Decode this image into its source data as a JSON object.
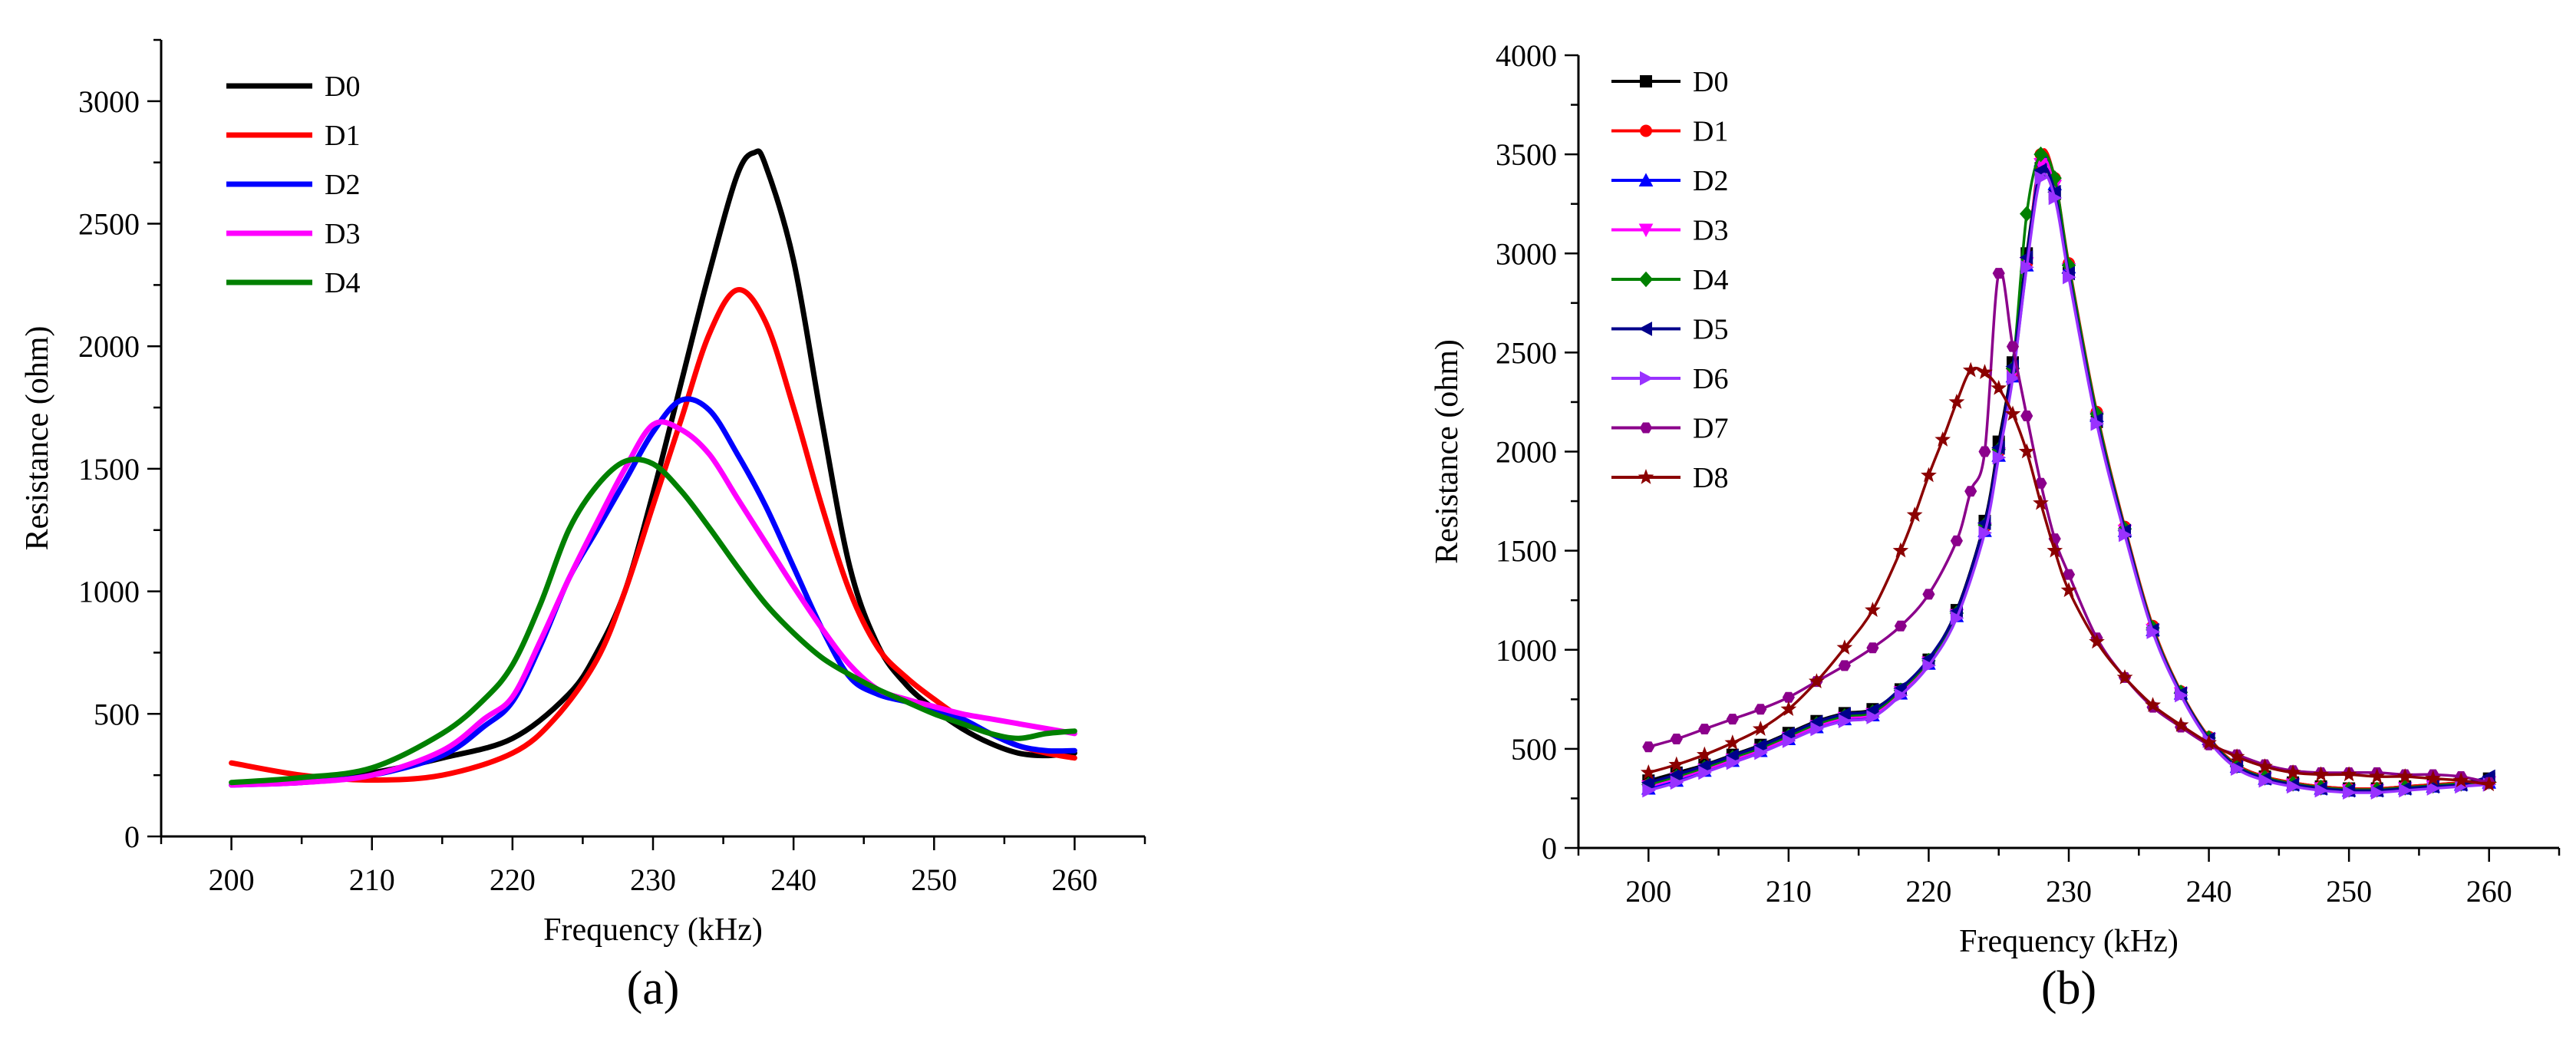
{
  "chart_data": [
    {
      "type": "line",
      "panel_label": "(a)",
      "xlabel": "Frequency (kHz)",
      "ylabel": "Resistance (ohm)",
      "xlim": [
        195,
        265
      ],
      "ylim": [
        0,
        3250
      ],
      "xticks": [
        200,
        210,
        220,
        230,
        240,
        250,
        260
      ],
      "yticks": [
        0,
        500,
        1000,
        1500,
        2000,
        2500,
        3000
      ],
      "markers": false,
      "grid": false,
      "legend": "top-left",
      "series": [
        {
          "name": "D0",
          "color": "#000000",
          "x": [
            200,
            205,
            210,
            215,
            220,
            224,
            226,
            228,
            230,
            232,
            234,
            236,
            237.2,
            238,
            240,
            242,
            244,
            246,
            248,
            250,
            252,
            254,
            256,
            258,
            260
          ],
          "y": [
            210,
            230,
            260,
            320,
            400,
            580,
            750,
            1000,
            1400,
            1850,
            2300,
            2700,
            2790,
            2740,
            2350,
            1700,
            1100,
            780,
            620,
            520,
            440,
            380,
            340,
            330,
            340
          ]
        },
        {
          "name": "D1",
          "color": "#ff0000",
          "x": [
            200,
            205,
            210,
            215,
            220,
            223,
            226,
            228,
            230,
            232,
            234,
            236,
            238,
            240,
            242,
            244,
            246,
            248,
            250,
            252,
            254,
            256,
            258,
            260
          ],
          "y": [
            300,
            250,
            230,
            250,
            340,
            480,
            720,
            1000,
            1350,
            1700,
            2050,
            2230,
            2100,
            1750,
            1350,
            1000,
            770,
            650,
            560,
            480,
            420,
            370,
            340,
            320
          ]
        },
        {
          "name": "D2",
          "color": "#0000ff",
          "x": [
            200,
            205,
            210,
            215,
            218,
            220,
            222,
            224,
            226,
            228,
            230,
            232,
            234,
            236,
            238,
            240,
            242,
            244,
            246,
            248,
            250,
            252,
            254,
            256,
            258,
            260
          ],
          "y": [
            210,
            220,
            250,
            330,
            450,
            550,
            780,
            1050,
            1250,
            1450,
            1650,
            1780,
            1740,
            1560,
            1350,
            1100,
            850,
            650,
            580,
            550,
            520,
            480,
            420,
            370,
            350,
            350
          ]
        },
        {
          "name": "D3",
          "color": "#ff00ff",
          "x": [
            200,
            205,
            210,
            215,
            218,
            220,
            222,
            224,
            226,
            228,
            230,
            232,
            234,
            236,
            238,
            240,
            242,
            244,
            246,
            248,
            250,
            252,
            254,
            256,
            258,
            260
          ],
          "y": [
            210,
            220,
            250,
            350,
            480,
            570,
            800,
            1050,
            1280,
            1500,
            1680,
            1660,
            1560,
            1380,
            1200,
            1020,
            850,
            700,
            600,
            560,
            530,
            500,
            480,
            460,
            440,
            420
          ]
        },
        {
          "name": "D4",
          "color": "#008000",
          "x": [
            200,
            205,
            210,
            215,
            218,
            220,
            222,
            224,
            226,
            228,
            230,
            232,
            234,
            236,
            238,
            240,
            242,
            244,
            246,
            248,
            250,
            252,
            254,
            256,
            258,
            260
          ],
          "y": [
            220,
            240,
            280,
            420,
            560,
            700,
            950,
            1250,
            1430,
            1530,
            1520,
            1410,
            1260,
            1100,
            950,
            830,
            730,
            660,
            600,
            550,
            500,
            460,
            420,
            400,
            420,
            430
          ]
        }
      ]
    },
    {
      "type": "line",
      "panel_label": "(b)",
      "xlabel": "Frequency (kHz)",
      "ylabel": "Resistance (ohm)",
      "xlim": [
        195,
        265
      ],
      "ylim": [
        0,
        4000
      ],
      "xticks": [
        200,
        210,
        220,
        230,
        240,
        250,
        260
      ],
      "yticks": [
        0,
        500,
        1000,
        1500,
        2000,
        2500,
        3000,
        3500,
        4000
      ],
      "markers": true,
      "grid": false,
      "legend": "top-left",
      "series": [
        {
          "name": "D0",
          "color": "#000000",
          "marker": "square",
          "x": [
            200,
            202,
            204,
            206,
            208,
            210,
            212,
            214,
            216,
            218,
            220,
            222,
            224,
            225,
            226,
            227,
            228,
            229,
            230,
            232,
            234,
            236,
            238,
            240,
            242,
            244,
            246,
            248,
            250,
            252,
            254,
            256,
            258,
            260
          ],
          "y": [
            340,
            380,
            420,
            470,
            520,
            580,
            640,
            680,
            700,
            800,
            950,
            1200,
            1650,
            2050,
            2450,
            3000,
            3430,
            3300,
            2900,
            2150,
            1600,
            1100,
            780,
            550,
            420,
            360,
            330,
            310,
            300,
            300,
            310,
            320,
            330,
            350
          ]
        },
        {
          "name": "D1",
          "color": "#ff0000",
          "marker": "circle",
          "x": [
            200,
            202,
            204,
            206,
            208,
            210,
            212,
            214,
            216,
            218,
            220,
            222,
            224,
            225,
            226,
            227,
            228,
            229,
            230,
            232,
            234,
            236,
            238,
            240,
            242,
            244,
            246,
            248,
            250,
            252,
            254,
            256,
            258,
            260
          ],
          "y": [
            320,
            360,
            400,
            450,
            500,
            560,
            620,
            660,
            680,
            790,
            940,
            1180,
            1620,
            2000,
            2400,
            2950,
            3500,
            3380,
            2950,
            2200,
            1620,
            1120,
            790,
            560,
            420,
            360,
            330,
            310,
            300,
            300,
            310,
            320,
            330,
            340
          ]
        },
        {
          "name": "D2",
          "color": "#0000ff",
          "marker": "triangle-up",
          "x": [
            200,
            202,
            204,
            206,
            208,
            210,
            212,
            214,
            216,
            218,
            220,
            222,
            224,
            225,
            226,
            227,
            228,
            229,
            230,
            232,
            234,
            236,
            238,
            240,
            242,
            244,
            246,
            248,
            250,
            252,
            254,
            256,
            258,
            260
          ],
          "y": [
            300,
            340,
            390,
            440,
            490,
            550,
            610,
            650,
            670,
            780,
            930,
            1170,
            1600,
            1980,
            2380,
            2940,
            3470,
            3350,
            2930,
            2180,
            1600,
            1100,
            780,
            550,
            410,
            350,
            320,
            300,
            290,
            290,
            300,
            310,
            320,
            330
          ]
        },
        {
          "name": "D3",
          "color": "#ff00ff",
          "marker": "triangle-down",
          "x": [
            200,
            202,
            204,
            206,
            208,
            210,
            212,
            214,
            216,
            218,
            220,
            222,
            224,
            225,
            226,
            227,
            228,
            229,
            230,
            232,
            234,
            236,
            238,
            240,
            242,
            244,
            246,
            248,
            250,
            252,
            254,
            256,
            258,
            260
          ],
          "y": [
            310,
            350,
            395,
            445,
            495,
            555,
            615,
            655,
            675,
            785,
            935,
            1175,
            1610,
            1990,
            2390,
            2950,
            3450,
            3340,
            2920,
            2170,
            1600,
            1100,
            780,
            550,
            410,
            350,
            320,
            300,
            290,
            290,
            300,
            310,
            320,
            330
          ]
        },
        {
          "name": "D4",
          "color": "#008000",
          "marker": "diamond",
          "x": [
            200,
            202,
            204,
            206,
            208,
            210,
            212,
            214,
            216,
            218,
            220,
            222,
            224,
            225,
            226,
            227,
            228,
            229,
            230,
            232,
            234,
            236,
            238,
            240,
            242,
            244,
            246,
            248,
            250,
            252,
            254,
            256,
            258,
            260
          ],
          "y": [
            320,
            360,
            405,
            455,
            505,
            565,
            625,
            665,
            685,
            795,
            945,
            1185,
            1630,
            2010,
            2420,
            3200,
            3500,
            3380,
            2940,
            2190,
            1610,
            1110,
            785,
            555,
            415,
            355,
            325,
            305,
            295,
            295,
            305,
            315,
            325,
            335
          ]
        },
        {
          "name": "D5",
          "color": "#00008b",
          "marker": "triangle-left",
          "x": [
            200,
            202,
            204,
            206,
            208,
            210,
            212,
            214,
            216,
            218,
            220,
            222,
            224,
            225,
            226,
            227,
            228,
            229,
            230,
            232,
            234,
            236,
            238,
            240,
            242,
            244,
            246,
            248,
            250,
            252,
            254,
            256,
            258,
            260
          ],
          "y": [
            330,
            370,
            415,
            465,
            515,
            575,
            635,
            675,
            695,
            805,
            955,
            1195,
            1640,
            2020,
            2430,
            2980,
            3420,
            3310,
            2900,
            2160,
            1600,
            1100,
            780,
            550,
            410,
            350,
            320,
            300,
            290,
            290,
            300,
            310,
            320,
            360
          ]
        },
        {
          "name": "D6",
          "color": "#9932ff",
          "marker": "triangle-right",
          "x": [
            200,
            202,
            204,
            206,
            208,
            210,
            212,
            214,
            216,
            218,
            220,
            222,
            224,
            225,
            226,
            227,
            228,
            229,
            230,
            232,
            234,
            236,
            238,
            240,
            242,
            244,
            246,
            248,
            250,
            252,
            254,
            256,
            258,
            260
          ],
          "y": [
            290,
            330,
            380,
            430,
            480,
            540,
            600,
            640,
            660,
            770,
            920,
            1160,
            1590,
            1970,
            2370,
            2930,
            3380,
            3280,
            2880,
            2140,
            1580,
            1090,
            770,
            540,
            400,
            340,
            310,
            290,
            280,
            280,
            290,
            300,
            310,
            320
          ]
        },
        {
          "name": "D7",
          "color": "#8b008b",
          "marker": "hexagon",
          "x": [
            200,
            202,
            204,
            206,
            208,
            210,
            212,
            214,
            216,
            218,
            220,
            222,
            223,
            224,
            225,
            226,
            227,
            228,
            229,
            230,
            232,
            234,
            236,
            238,
            240,
            242,
            244,
            246,
            248,
            250,
            252,
            254,
            256,
            258,
            260
          ],
          "y": [
            510,
            550,
            600,
            650,
            700,
            760,
            840,
            920,
            1010,
            1120,
            1280,
            1550,
            1800,
            2000,
            2900,
            2530,
            2180,
            1840,
            1560,
            1380,
            1060,
            860,
            710,
            610,
            520,
            470,
            420,
            390,
            380,
            380,
            380,
            370,
            370,
            360,
            330
          ]
        },
        {
          "name": "D8",
          "color": "#8b0000",
          "marker": "star",
          "x": [
            200,
            202,
            204,
            206,
            208,
            210,
            212,
            214,
            216,
            218,
            219,
            220,
            221,
            222,
            223,
            224,
            225,
            226,
            227,
            228,
            229,
            230,
            232,
            234,
            236,
            238,
            240,
            242,
            244,
            246,
            248,
            250,
            252,
            254,
            256,
            258,
            260
          ],
          "y": [
            380,
            420,
            470,
            530,
            600,
            700,
            840,
            1010,
            1200,
            1500,
            1680,
            1880,
            2060,
            2250,
            2410,
            2400,
            2320,
            2190,
            2000,
            1740,
            1500,
            1300,
            1040,
            860,
            720,
            620,
            530,
            460,
            410,
            380,
            370,
            370,
            360,
            360,
            350,
            340,
            320
          ]
        }
      ]
    }
  ]
}
